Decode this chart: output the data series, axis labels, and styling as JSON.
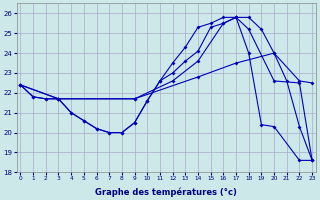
{
  "xlabel": "Graphe des températures (°c)",
  "bg_color": "#cce8e8",
  "grid_color": "#aaaacc",
  "line_color": "#0000bb",
  "ylim": [
    18,
    26.5
  ],
  "xlim": [
    -0.3,
    23.3
  ],
  "yticks": [
    18,
    19,
    20,
    21,
    22,
    23,
    24,
    25,
    26
  ],
  "xticks": [
    0,
    1,
    2,
    3,
    4,
    5,
    6,
    7,
    8,
    9,
    10,
    11,
    12,
    13,
    14,
    15,
    16,
    17,
    18,
    19,
    20,
    21,
    22,
    23
  ],
  "s1_x": [
    0,
    1,
    2,
    3,
    4,
    5,
    6,
    7,
    8,
    9,
    10,
    11,
    12,
    13,
    14,
    15,
    16,
    17,
    18,
    19,
    20,
    21,
    22,
    23
  ],
  "s1_y": [
    22.4,
    21.8,
    21.7,
    21.7,
    21.0,
    20.6,
    20.2,
    20.0,
    20.0,
    20.5,
    21.6,
    22.6,
    23.0,
    23.6,
    24.1,
    25.3,
    25.5,
    25.8,
    25.8,
    25.2,
    24.0,
    22.6,
    20.3,
    18.6
  ],
  "s2_x": [
    0,
    1,
    2,
    3,
    4,
    5,
    6,
    7,
    8,
    9,
    10,
    11,
    12,
    13,
    14,
    15,
    16,
    17,
    18,
    19,
    20,
    22,
    23
  ],
  "s2_y": [
    22.4,
    21.8,
    21.7,
    21.7,
    21.0,
    20.6,
    20.2,
    20.0,
    20.0,
    20.5,
    21.6,
    22.6,
    23.5,
    24.3,
    25.3,
    25.5,
    25.8,
    25.8,
    24.0,
    20.4,
    20.3,
    18.6,
    18.6
  ],
  "s3_x": [
    0,
    3,
    9,
    14,
    17,
    20,
    22,
    23
  ],
  "s3_y": [
    22.4,
    21.7,
    21.7,
    22.8,
    23.5,
    24.0,
    22.6,
    22.5
  ],
  "s4_x": [
    0,
    3,
    9,
    12,
    14,
    16,
    17,
    18,
    20,
    22,
    23
  ],
  "s4_y": [
    22.4,
    21.7,
    21.7,
    22.6,
    23.6,
    25.5,
    25.8,
    25.2,
    22.6,
    22.5,
    18.6
  ]
}
